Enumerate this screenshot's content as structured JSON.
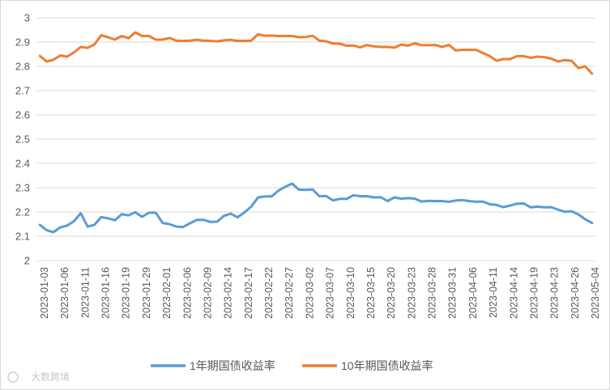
{
  "watermark": "大数跨境",
  "chart_data": {
    "type": "line",
    "title": "",
    "xlabel": "",
    "ylabel": "",
    "ylim": [
      2,
      3
    ],
    "yticks": [
      2,
      2.1,
      2.2,
      2.3,
      2.4,
      2.5,
      2.6,
      2.7,
      2.8,
      2.9,
      3
    ],
    "grid": true,
    "legend_position": "bottom",
    "x_tick_labels": [
      "2023-01-03",
      "2023-01-06",
      "2023-01-11",
      "2023-01-16",
      "2023-01-19",
      "2023-01-29",
      "2023-02-01",
      "2023-02-06",
      "2023-02-09",
      "2023-02-14",
      "2023-02-17",
      "2023-02-22",
      "2023-02-27",
      "2023-03-02",
      "2023-03-07",
      "2023-03-10",
      "2023-03-15",
      "2023-03-20",
      "2023-03-23",
      "2023-03-28",
      "2023-03-31",
      "2023-04-06",
      "2023-04-11",
      "2023-04-14",
      "2023-04-19",
      "2023-04-23",
      "2023-04-26",
      "2023-05-04"
    ],
    "series": [
      {
        "name": "1年期国债收益率",
        "color": "#5b9bd5",
        "values": [
          2.147,
          2.125,
          2.117,
          2.137,
          2.144,
          2.162,
          2.195,
          2.14,
          2.147,
          2.179,
          2.174,
          2.166,
          2.191,
          2.186,
          2.199,
          2.18,
          2.197,
          2.197,
          2.155,
          2.15,
          2.14,
          2.138,
          2.153,
          2.167,
          2.168,
          2.159,
          2.16,
          2.184,
          2.193,
          2.178,
          2.198,
          2.222,
          2.26,
          2.264,
          2.264,
          2.288,
          2.304,
          2.317,
          2.292,
          2.291,
          2.293,
          2.265,
          2.266,
          2.248,
          2.254,
          2.254,
          2.269,
          2.265,
          2.265,
          2.26,
          2.261,
          2.245,
          2.26,
          2.255,
          2.257,
          2.255,
          2.243,
          2.246,
          2.245,
          2.245,
          2.242,
          2.247,
          2.249,
          2.245,
          2.242,
          2.243,
          2.232,
          2.229,
          2.22,
          2.227,
          2.234,
          2.235,
          2.219,
          2.222,
          2.219,
          2.22,
          2.21,
          2.201,
          2.203,
          2.19,
          2.17,
          2.155
        ]
      },
      {
        "name": "10年期国债收益率",
        "color": "#ed7d31",
        "values": [
          2.843,
          2.82,
          2.827,
          2.845,
          2.84,
          2.857,
          2.88,
          2.876,
          2.89,
          2.928,
          2.92,
          2.91,
          2.925,
          2.916,
          2.94,
          2.925,
          2.925,
          2.91,
          2.91,
          2.917,
          2.906,
          2.905,
          2.906,
          2.909,
          2.906,
          2.905,
          2.903,
          2.907,
          2.909,
          2.905,
          2.905,
          2.906,
          2.932,
          2.926,
          2.927,
          2.925,
          2.925,
          2.925,
          2.92,
          2.921,
          2.926,
          2.906,
          2.903,
          2.894,
          2.893,
          2.885,
          2.886,
          2.878,
          2.888,
          2.882,
          2.88,
          2.88,
          2.877,
          2.89,
          2.885,
          2.895,
          2.887,
          2.887,
          2.888,
          2.88,
          2.888,
          2.866,
          2.868,
          2.868,
          2.868,
          2.855,
          2.842,
          2.823,
          2.83,
          2.83,
          2.842,
          2.842,
          2.835,
          2.84,
          2.838,
          2.832,
          2.82,
          2.826,
          2.823,
          2.793,
          2.8,
          2.77
        ]
      }
    ]
  }
}
